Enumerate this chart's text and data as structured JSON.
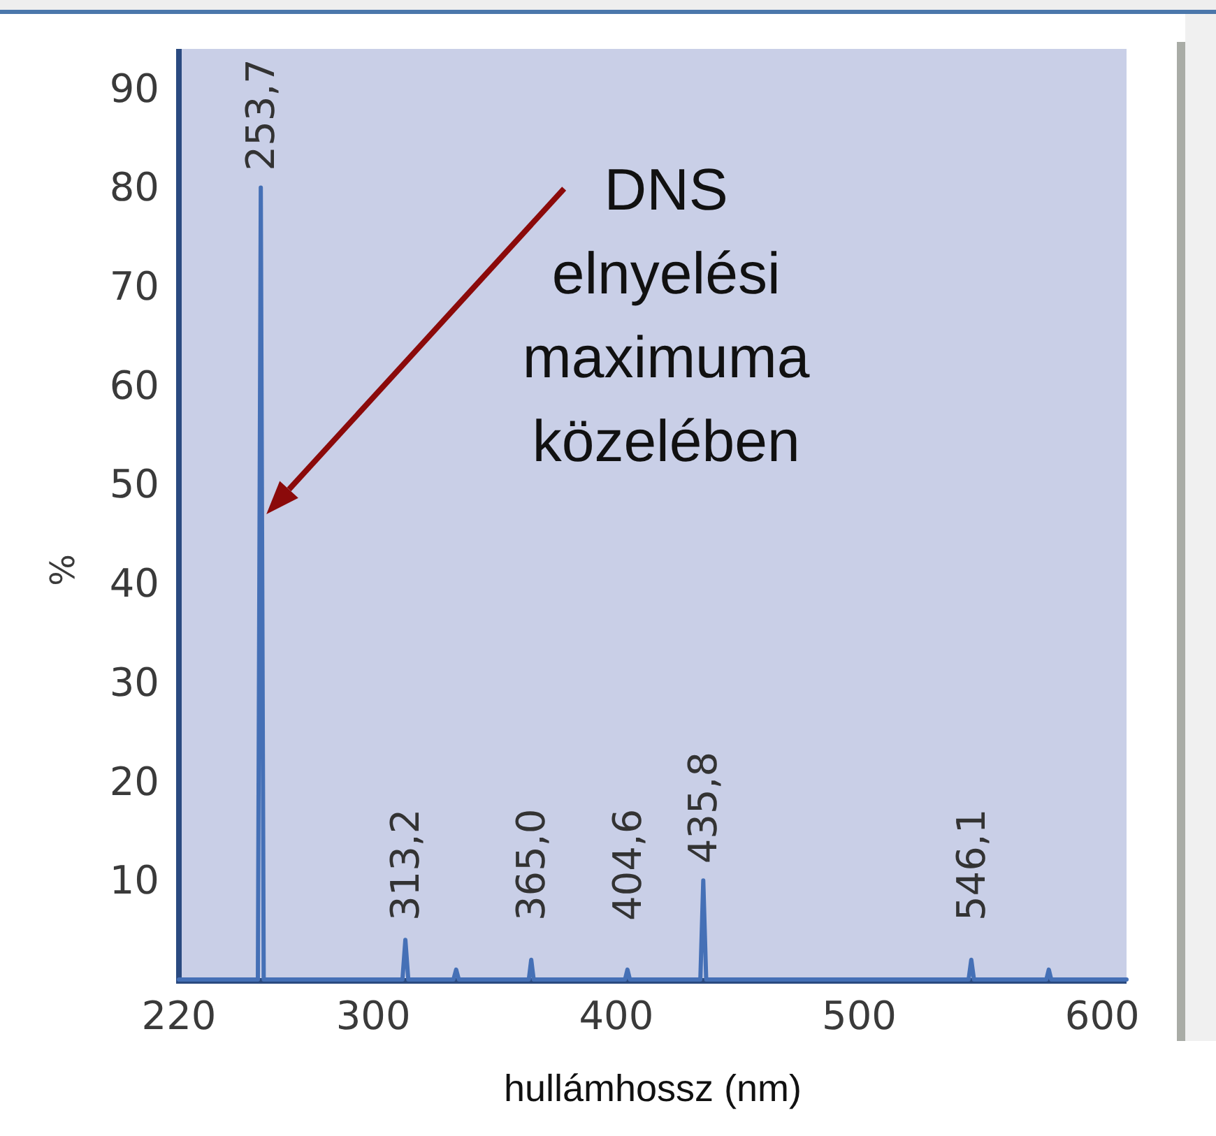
{
  "chart_data": {
    "type": "line",
    "xlabel": "hullámhossz (nm)",
    "ylabel": "%",
    "color": "#4570b6",
    "x": [
      220,
      252.5,
      253.7,
      254.9,
      312,
      313.2,
      314.4,
      333,
      334.1,
      335.2,
      364,
      365.0,
      366,
      403.6,
      404.6,
      405.6,
      434.6,
      435.8,
      437,
      545,
      546.1,
      547.2,
      577,
      578,
      579,
      610
    ],
    "values": [
      0,
      0,
      80,
      0,
      0,
      4,
      0,
      0,
      1,
      0,
      0,
      2,
      0,
      0,
      1,
      0,
      0,
      10,
      0,
      0,
      2,
      0,
      0,
      1,
      0,
      0
    ],
    "xlim": [
      220,
      610
    ],
    "xticks": [
      220,
      300,
      400,
      500,
      600
    ],
    "ylim": [
      0,
      94
    ],
    "yticks": [
      10,
      20,
      30,
      40,
      50,
      60,
      70,
      80,
      90
    ],
    "annotations": [
      {
        "text": "253,7",
        "x": 253.7,
        "y": 80
      },
      {
        "text": "313,2",
        "x": 313.2,
        "y": 4
      },
      {
        "text": "365,0",
        "x": 365.0,
        "y": 2
      },
      {
        "text": "404,6",
        "x": 404.6,
        "y": 1
      },
      {
        "text": "435,8",
        "x": 435.8,
        "y": 10
      },
      {
        "text": "546,1",
        "x": 546.1,
        "y": 2
      },
      "DNS elnyelési maximuma közelében"
    ]
  }
}
